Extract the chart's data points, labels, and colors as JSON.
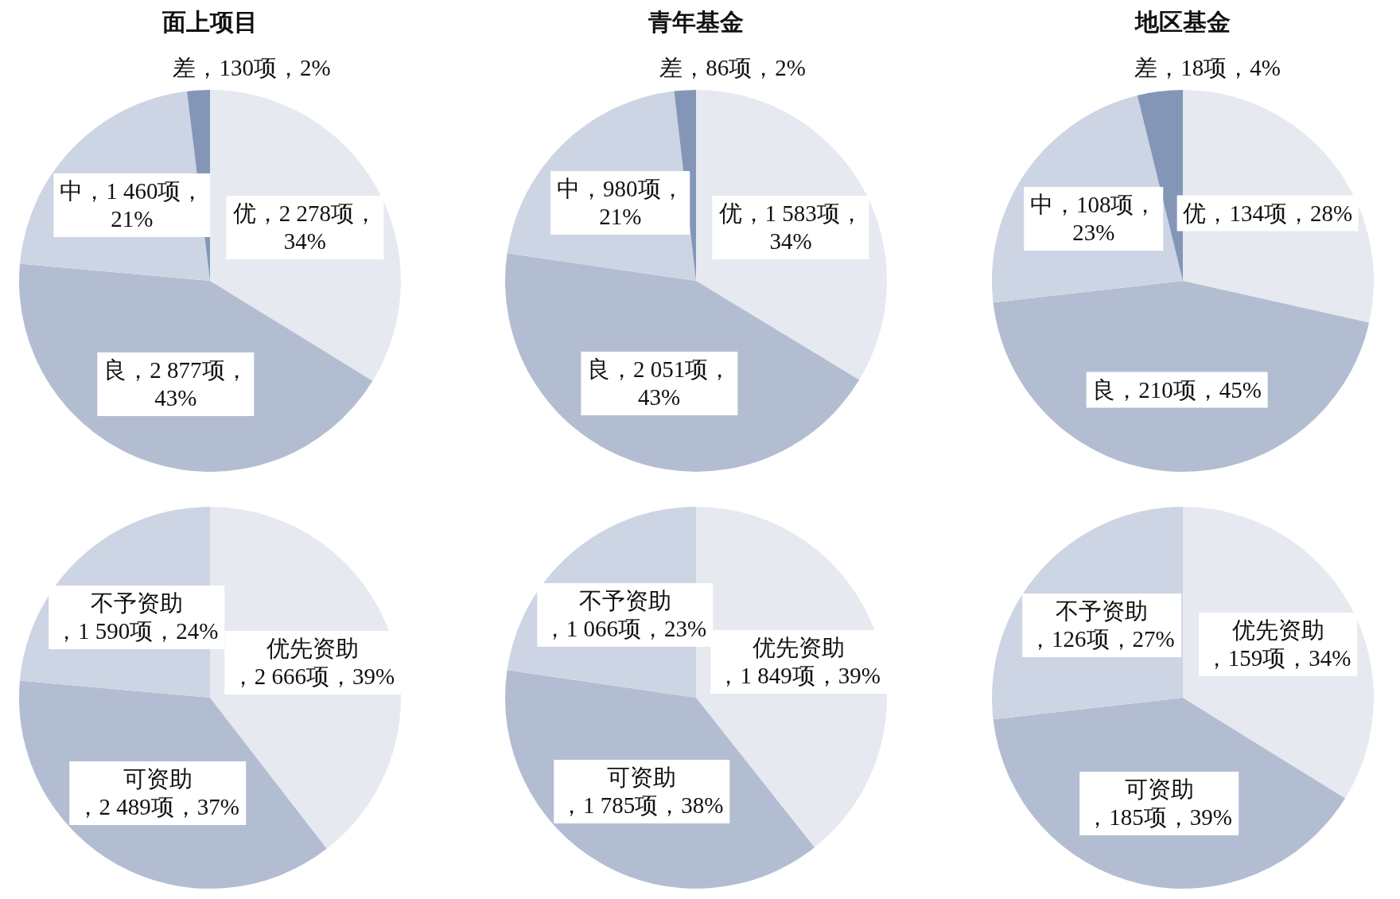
{
  "chart_data": [
    {
      "type": "pie",
      "title": "面上项目",
      "categories": [
        "优",
        "良",
        "中",
        "差"
      ],
      "values": [
        2278,
        2877,
        1460,
        130
      ],
      "colors": [
        "#e6e9f0",
        "#b3bdd2",
        "#cdd4e3",
        "#8496b8"
      ],
      "value_labels": [
        "，2 278项，\n34%",
        "，2 877项，\n43%",
        "，1 460项，\n21%",
        "，130项，2%"
      ]
    },
    {
      "type": "pie",
      "title": "青年基金",
      "categories": [
        "优",
        "良",
        "中",
        "差"
      ],
      "values": [
        1583,
        2051,
        980,
        86
      ],
      "colors": [
        "#e6e9f0",
        "#b3bdd2",
        "#cdd4e3",
        "#8496b8"
      ],
      "value_labels": [
        "，1 583项，\n34%",
        "，2 051项，\n43%",
        "，980项，\n21%",
        "，86项，2%"
      ]
    },
    {
      "type": "pie",
      "title": "地区基金",
      "categories": [
        "优",
        "良",
        "中",
        "差"
      ],
      "values": [
        134,
        210,
        108,
        18
      ],
      "colors": [
        "#e6e9f0",
        "#b3bdd2",
        "#cdd4e3",
        "#8496b8"
      ],
      "value_labels": [
        "，134项，28%",
        "，210项，45%",
        "，108项，\n23%",
        "，18项，4%"
      ]
    },
    {
      "type": "pie",
      "categories": [
        "优先资助",
        "可资助",
        "不予资助"
      ],
      "values": [
        2666,
        2489,
        1590
      ],
      "colors": [
        "#e6e9f0",
        "#b3bdd2",
        "#cdd4e3"
      ],
      "value_labels": [
        "\n，2 666项，39%",
        "\n，2 489项，37%",
        "\n，1 590项，24%"
      ]
    },
    {
      "type": "pie",
      "categories": [
        "优先资助",
        "可资助",
        "不予资助"
      ],
      "values": [
        1849,
        1785,
        1066
      ],
      "colors": [
        "#e6e9f0",
        "#b3bdd2",
        "#cdd4e3"
      ],
      "value_labels": [
        "\n，1 849项，39%",
        "\n，1 785项，38%",
        "\n，1 066项，23%"
      ]
    },
    {
      "type": "pie",
      "categories": [
        "优先资助",
        "可资助",
        "不予资助"
      ],
      "values": [
        159,
        185,
        126
      ],
      "colors": [
        "#e6e9f0",
        "#b3bdd2",
        "#cdd4e3"
      ],
      "value_labels": [
        "\n，159项，34%",
        "\n，185项，39%",
        "\n，126项，27%"
      ]
    }
  ]
}
